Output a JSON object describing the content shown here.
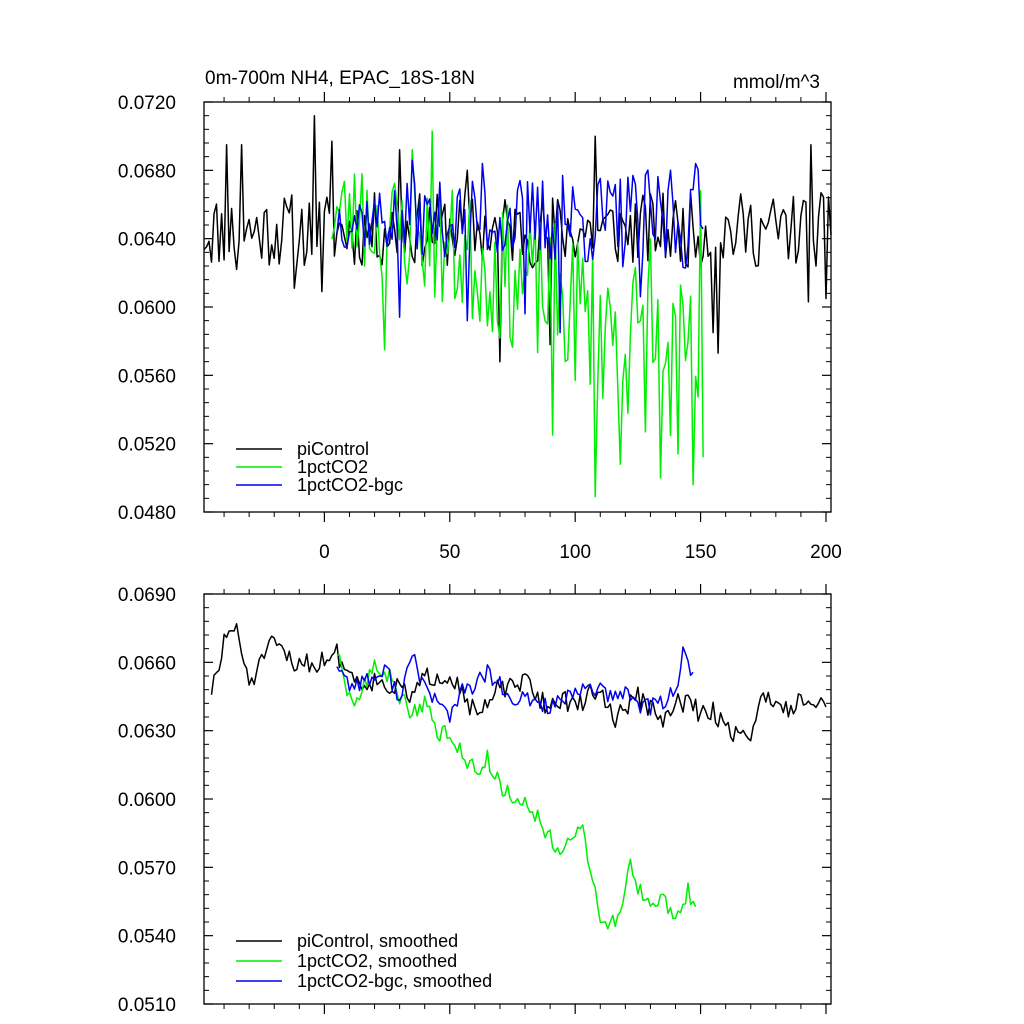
{
  "chart_data": [
    {
      "type": "line",
      "title": "0m-700m NH4, EPAC_18S-18N",
      "units": "mmol/m^3",
      "xlim": [
        -48,
        202
      ],
      "ylim": [
        0.048,
        0.072
      ],
      "xticks": [
        0,
        50,
        100,
        150,
        200
      ],
      "xtick_labels": [
        "0",
        "50",
        "100",
        "150",
        "200"
      ],
      "yticks": [
        0.048,
        0.052,
        0.056,
        0.06,
        0.064,
        0.068,
        0.072
      ],
      "ytick_labels": [
        "0.0480",
        "0.0520",
        "0.0560",
        "0.0600",
        "0.0640",
        "0.0680",
        "0.0720"
      ],
      "legend_position": "bottom-left",
      "series": [
        {
          "name": "piControl",
          "color": "#000000",
          "x_start": -48,
          "x_end": 202,
          "mean": 0.0645,
          "noise": 0.0022,
          "trend_end": 0.0,
          "seed": 11,
          "peaks": [
            [
              -39,
              0.0695
            ],
            [
              -33,
              0.0695
            ],
            [
              -4,
              0.0712
            ],
            [
              3,
              0.0697
            ],
            [
              108,
              0.07
            ],
            [
              194,
              0.0695
            ],
            [
              30,
              0.0692
            ],
            [
              57,
              0.068
            ]
          ],
          "troughs": [
            [
              -35,
              0.0622
            ],
            [
              -12,
              0.0611
            ],
            [
              -1,
              0.0609
            ],
            [
              70,
              0.0568
            ],
            [
              90,
              0.0578
            ],
            [
              157,
              0.0573
            ],
            [
              193,
              0.0603
            ],
            [
              200,
              0.0605
            ],
            [
              155,
              0.0585
            ]
          ]
        },
        {
          "name": "1pctCO2",
          "color": "#00ee00",
          "x_start": 3,
          "x_end": 151,
          "mean": 0.0655,
          "noise": 0.003,
          "trend_end": 0.0558,
          "seed": 23,
          "peaks": [
            [
              43,
              0.0703
            ],
            [
              35,
              0.0692
            ],
            [
              15,
              0.0678
            ],
            [
              130,
              0.064
            ],
            [
              150,
              0.0668
            ]
          ],
          "troughs": [
            [
              24,
              0.0575
            ],
            [
              91,
              0.0525
            ],
            [
              108,
              0.0489
            ],
            [
              134,
              0.05
            ],
            [
              147,
              0.0496
            ],
            [
              151,
              0.0512
            ],
            [
              118,
              0.0508
            ],
            [
              141,
              0.0514
            ]
          ]
        },
        {
          "name": "1pctCO2-bgc",
          "color": "#0000ee",
          "x_start": 5,
          "x_end": 151,
          "mean": 0.0652,
          "noise": 0.0018,
          "trend_end": 0.065,
          "seed": 37,
          "peaks": [
            [
              35,
              0.0686
            ],
            [
              63,
              0.0684
            ],
            [
              95,
              0.0677
            ],
            [
              148,
              0.0684
            ],
            [
              121,
              0.0676
            ],
            [
              138,
              0.068
            ]
          ],
          "troughs": [
            [
              30,
              0.0594
            ],
            [
              57,
              0.0592
            ],
            [
              94,
              0.0585
            ],
            [
              80,
              0.0596
            ],
            [
              126,
              0.0606
            ]
          ]
        }
      ]
    },
    {
      "type": "line",
      "title": "",
      "xlim": [
        -48,
        202
      ],
      "ylim": [
        0.051,
        0.069
      ],
      "xticks": [
        0,
        50,
        100,
        150,
        200
      ],
      "yticks": [
        0.051,
        0.054,
        0.057,
        0.06,
        0.063,
        0.066,
        0.069
      ],
      "ytick_labels": [
        "0.0510",
        "0.0540",
        "0.0570",
        "0.0600",
        "0.0630",
        "0.0660",
        "0.0690"
      ],
      "legend_position": "bottom-left",
      "series": [
        {
          "name": "piControl, smoothed",
          "color": "#000000",
          "x_start": -45,
          "x_end": 200,
          "anchors": [
            [
              -45,
              0.0648
            ],
            [
              -42,
              0.0656
            ],
            [
              -40,
              0.067
            ],
            [
              -38,
              0.0675
            ],
            [
              -35,
              0.0673
            ],
            [
              -32,
              0.066
            ],
            [
              -30,
              0.0652
            ],
            [
              -27,
              0.0655
            ],
            [
              -24,
              0.0664
            ],
            [
              -20,
              0.0668
            ],
            [
              -16,
              0.0664
            ],
            [
              -12,
              0.0658
            ],
            [
              -8,
              0.0662
            ],
            [
              -4,
              0.0658
            ],
            [
              0,
              0.0662
            ],
            [
              5,
              0.0664
            ],
            [
              10,
              0.0655
            ],
            [
              15,
              0.0651
            ],
            [
              20,
              0.0652
            ],
            [
              25,
              0.065
            ],
            [
              30,
              0.0648
            ],
            [
              35,
              0.0645
            ],
            [
              40,
              0.0653
            ],
            [
              45,
              0.0654
            ],
            [
              50,
              0.0655
            ],
            [
              55,
              0.0648
            ],
            [
              60,
              0.0637
            ],
            [
              65,
              0.064
            ],
            [
              70,
              0.065
            ],
            [
              75,
              0.0648
            ],
            [
              80,
              0.0652
            ],
            [
              85,
              0.0645
            ],
            [
              90,
              0.064
            ],
            [
              95,
              0.0645
            ],
            [
              100,
              0.0639
            ],
            [
              105,
              0.0646
            ],
            [
              110,
              0.0648
            ],
            [
              115,
              0.0635
            ],
            [
              120,
              0.064
            ],
            [
              125,
              0.0645
            ],
            [
              130,
              0.064
            ],
            [
              135,
              0.0633
            ],
            [
              140,
              0.0642
            ],
            [
              145,
              0.0643
            ],
            [
              150,
              0.0637
            ],
            [
              155,
              0.0638
            ],
            [
              160,
              0.0633
            ],
            [
              165,
              0.0627
            ],
            [
              170,
              0.063
            ],
            [
              175,
              0.0644
            ],
            [
              180,
              0.0645
            ],
            [
              185,
              0.0638
            ],
            [
              190,
              0.0646
            ],
            [
              195,
              0.0643
            ],
            [
              200,
              0.0642
            ]
          ],
          "noise": 0.00045,
          "seed": 51
        },
        {
          "name": "1pctCO2, smoothed",
          "color": "#00ee00",
          "x_start": 5,
          "x_end": 148,
          "anchors": [
            [
              5,
              0.0665
            ],
            [
              8,
              0.0648
            ],
            [
              12,
              0.0642
            ],
            [
              15,
              0.0648
            ],
            [
              20,
              0.0658
            ],
            [
              25,
              0.0655
            ],
            [
              30,
              0.0645
            ],
            [
              35,
              0.0638
            ],
            [
              40,
              0.0643
            ],
            [
              45,
              0.0628
            ],
            [
              50,
              0.063
            ],
            [
              55,
              0.062
            ],
            [
              60,
              0.0612
            ],
            [
              65,
              0.0618
            ],
            [
              70,
              0.0606
            ],
            [
              75,
              0.06
            ],
            [
              80,
              0.06
            ],
            [
              85,
              0.0592
            ],
            [
              90,
              0.0583
            ],
            [
              95,
              0.0577
            ],
            [
              100,
              0.0582
            ],
            [
              102,
              0.059
            ],
            [
              105,
              0.0575
            ],
            [
              110,
              0.0548
            ],
            [
              115,
              0.0545
            ],
            [
              118,
              0.0552
            ],
            [
              122,
              0.0573
            ],
            [
              125,
              0.056
            ],
            [
              130,
              0.0553
            ],
            [
              135,
              0.0557
            ],
            [
              138,
              0.055
            ],
            [
              142,
              0.0547
            ],
            [
              145,
              0.056
            ],
            [
              148,
              0.0553
            ]
          ],
          "noise": 0.0004,
          "seed": 63
        },
        {
          "name": "1pctCO2-bgc, smoothed",
          "color": "#0000ee",
          "x_start": 5,
          "x_end": 147,
          "anchors": [
            [
              5,
              0.066
            ],
            [
              10,
              0.065
            ],
            [
              15,
              0.0652
            ],
            [
              20,
              0.0653
            ],
            [
              25,
              0.0656
            ],
            [
              30,
              0.0645
            ],
            [
              35,
              0.0662
            ],
            [
              40,
              0.065
            ],
            [
              45,
              0.0642
            ],
            [
              50,
              0.0637
            ],
            [
              55,
              0.0647
            ],
            [
              60,
              0.065
            ],
            [
              65,
              0.0655
            ],
            [
              70,
              0.065
            ],
            [
              75,
              0.064
            ],
            [
              80,
              0.0645
            ],
            [
              85,
              0.0642
            ],
            [
              90,
              0.0641
            ],
            [
              95,
              0.0643
            ],
            [
              100,
              0.0645
            ],
            [
              105,
              0.065
            ],
            [
              110,
              0.0648
            ],
            [
              115,
              0.0643
            ],
            [
              120,
              0.0648
            ],
            [
              125,
              0.0642
            ],
            [
              130,
              0.064
            ],
            [
              135,
              0.0643
            ],
            [
              140,
              0.0648
            ],
            [
              143,
              0.0663
            ],
            [
              145,
              0.0658
            ],
            [
              147,
              0.0656
            ]
          ],
          "noise": 0.0004,
          "seed": 77
        }
      ]
    }
  ]
}
